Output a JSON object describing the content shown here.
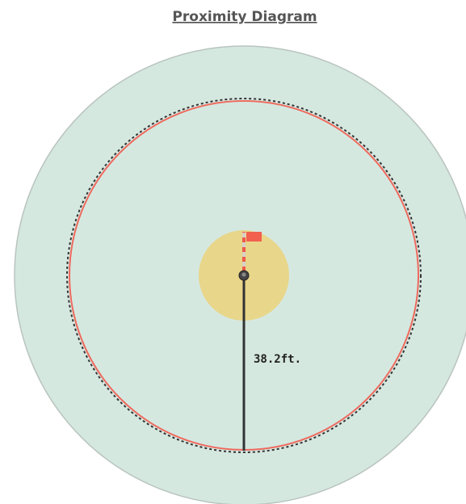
{
  "title": "Proximity Diagram",
  "label": "38.2ft."
}
